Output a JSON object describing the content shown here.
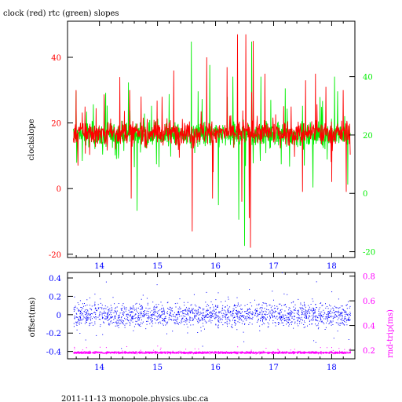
{
  "title": "clock (red) rtc (green) slopes",
  "footer": "2011-11-13 monopole.physics.ubc.ca",
  "colors": {
    "frame": "#000000",
    "red_series": "#ff0000",
    "green_series": "#00ee00",
    "blue_series": "#0000ff",
    "magenta_series": "#ff00ff",
    "x_tick_color": "#0000ff"
  },
  "chart_data": [
    {
      "type": "line",
      "ylabel": "clockslope",
      "xlim": [
        13.45,
        18.4
      ],
      "x_ticks": [
        "14",
        "15",
        "16",
        "17",
        "18"
      ],
      "y_left": {
        "ticks": [
          "-20",
          "0",
          "20",
          "40"
        ],
        "lim": [
          -21,
          51
        ],
        "color": "#ff0000"
      },
      "y_right": {
        "ticks": [
          "-20",
          "0",
          "20",
          "40"
        ],
        "lim": [
          -22,
          59
        ],
        "color": "#00ee00"
      },
      "series": [
        {
          "name": "clock (red)",
          "color": "#ff0000",
          "x_range": [
            13.55,
            18.32
          ],
          "baseline": 17,
          "noise": 2.5,
          "spikes": [
            [
              13.6,
              30
            ],
            [
              13.63,
              7
            ],
            [
              13.75,
              25
            ],
            [
              14.35,
              34
            ],
            [
              14.52,
              30
            ],
            [
              14.55,
              -3
            ],
            [
              15.08,
              28
            ],
            [
              15.28,
              36
            ],
            [
              15.6,
              -13
            ],
            [
              15.85,
              40
            ],
            [
              15.95,
              -3
            ],
            [
              16.2,
              37
            ],
            [
              16.38,
              47
            ],
            [
              16.45,
              -4
            ],
            [
              16.52,
              47
            ],
            [
              16.58,
              -9
            ],
            [
              16.6,
              -18
            ],
            [
              16.65,
              45
            ],
            [
              16.85,
              35
            ],
            [
              17.3,
              25
            ],
            [
              17.5,
              -1
            ],
            [
              17.55,
              33
            ],
            [
              17.72,
              35
            ],
            [
              17.9,
              31
            ],
            [
              18.0,
              2
            ],
            [
              18.2,
              30
            ],
            [
              18.25,
              -1
            ]
          ]
        },
        {
          "name": "rtc (green)",
          "color": "#00ee00",
          "x_range": [
            13.55,
            18.32
          ],
          "baseline": 20,
          "noise": 3,
          "spikes": [
            [
              13.6,
              35
            ],
            [
              13.78,
              28
            ],
            [
              14.1,
              32
            ],
            [
              14.5,
              38
            ],
            [
              14.65,
              -6
            ],
            [
              14.9,
              30
            ],
            [
              15.2,
              34
            ],
            [
              15.58,
              52
            ],
            [
              15.7,
              35
            ],
            [
              15.9,
              44
            ],
            [
              16.05,
              -4
            ],
            [
              16.3,
              40
            ],
            [
              16.4,
              -9
            ],
            [
              16.5,
              -18
            ],
            [
              16.62,
              52
            ],
            [
              16.78,
              40
            ],
            [
              16.95,
              32
            ],
            [
              17.2,
              36
            ],
            [
              17.5,
              30
            ],
            [
              17.68,
              2
            ],
            [
              17.8,
              33
            ],
            [
              18.05,
              40
            ],
            [
              18.1,
              35
            ],
            [
              18.28,
              3
            ]
          ]
        }
      ]
    },
    {
      "type": "scatter",
      "ylabel_left": "offset(ms)",
      "ylabel_right": "rnd-trip(ms)",
      "xlim": [
        13.45,
        18.4
      ],
      "x_ticks": [
        "14",
        "15",
        "16",
        "17",
        "18"
      ],
      "y_left": {
        "ticks": [
          "-0.4",
          "-0.2",
          "0",
          "0.2",
          "0.4"
        ],
        "lim": [
          -0.48,
          0.46
        ],
        "color": "#0000ff"
      },
      "y_right": {
        "ticks": [
          "0.2",
          "0.4",
          "0.6",
          "0.8"
        ],
        "lim": [
          0.13,
          0.83
        ],
        "color": "#ff00ff"
      },
      "series": [
        {
          "name": "offset",
          "color": "#0000ff",
          "axis": "left",
          "x_range": [
            13.55,
            18.32
          ],
          "center": 0.0,
          "spread": 0.18,
          "count": 3600
        },
        {
          "name": "rnd-trip",
          "color": "#ff00ff",
          "axis": "right",
          "x_range": [
            13.55,
            18.32
          ],
          "center": 0.18,
          "spread": 0.012,
          "count": 3200
        }
      ]
    }
  ]
}
